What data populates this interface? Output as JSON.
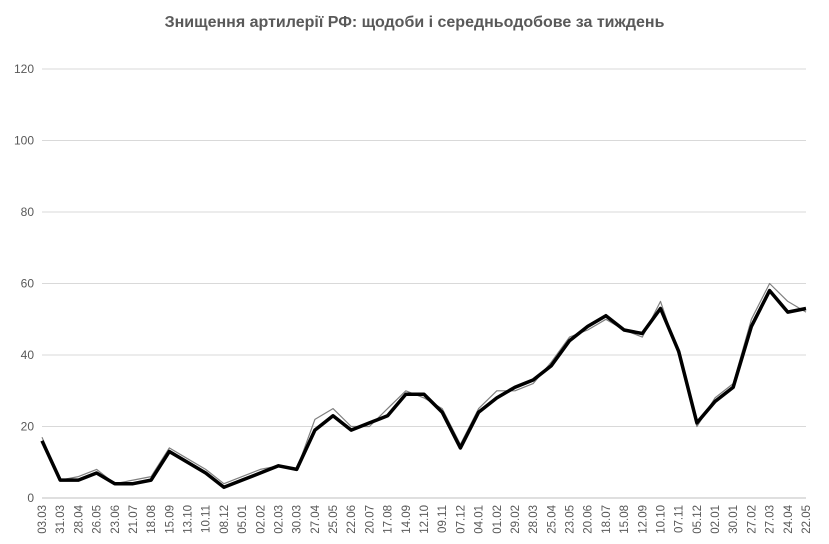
{
  "chart_data": {
    "type": "line",
    "title": "Знищення артилерії РФ: щодоби і середньодобове за тиждень",
    "ylim": [
      0,
      120
    ],
    "y_ticks": [
      0,
      20,
      40,
      60,
      80,
      100,
      120
    ],
    "grid": "horizontal",
    "legend": "none",
    "x_tick_labels": [
      "03.03",
      "31.03",
      "28.04",
      "26.05",
      "23.06",
      "21.07",
      "18.08",
      "15.09",
      "13.10",
      "10.11",
      "08.12",
      "05.01",
      "02.02",
      "02.03",
      "30.03",
      "27.04",
      "25.05",
      "22.06",
      "20.07",
      "17.08",
      "14.09",
      "12.10",
      "09.11",
      "07.12",
      "04.01",
      "01.02",
      "29.02",
      "28.03",
      "25.04",
      "23.05",
      "20.06",
      "18.07",
      "15.08",
      "12.09",
      "10.10",
      "07.11",
      "05.12",
      "02.01",
      "30.01",
      "27.02",
      "27.03",
      "24.04",
      "22.05"
    ],
    "series": [
      {
        "style": "daily",
        "color": "#7f7f7f",
        "values_by_tick": [
          17,
          5,
          6,
          8,
          4,
          5,
          6,
          14,
          11,
          8,
          4,
          6,
          8,
          9,
          8,
          22,
          25,
          20,
          20,
          25,
          30,
          28,
          25,
          15,
          25,
          30,
          30,
          32,
          38,
          45,
          47,
          50,
          47,
          45,
          55,
          40,
          20,
          28,
          32,
          50,
          60,
          55,
          52
        ]
      },
      {
        "style": "weekly average",
        "color": "#000000",
        "values_by_tick": [
          16,
          5,
          5,
          7,
          4,
          4,
          5,
          13,
          10,
          7,
          3,
          5,
          7,
          9,
          8,
          19,
          23,
          19,
          21,
          23,
          29,
          29,
          24,
          14,
          24,
          28,
          31,
          33,
          37,
          44,
          48,
          51,
          47,
          46,
          53,
          41,
          21,
          27,
          31,
          48,
          58,
          52,
          53
        ]
      }
    ]
  }
}
